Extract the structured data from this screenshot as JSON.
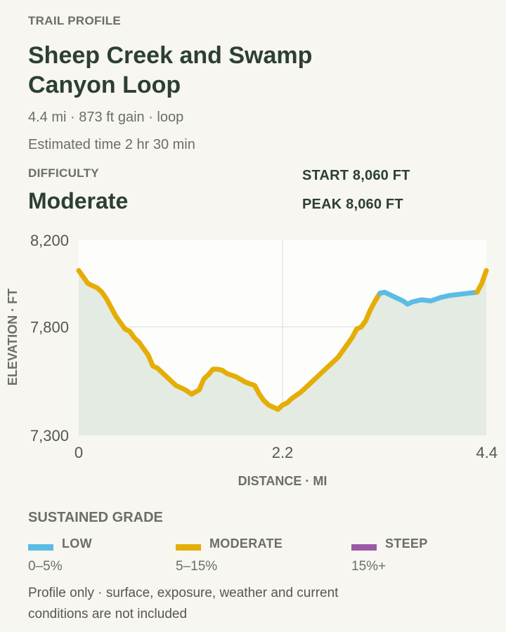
{
  "header": {
    "eyebrow": "TRAIL PROFILE",
    "title": "Sheep Creek and Swamp Canyon Loop",
    "summary": "4.4 mi · 873 ft gain · loop",
    "time": "Estimated time 2 hr 30 min"
  },
  "difficulty": {
    "label": "DIFFICULTY",
    "value": "Moderate"
  },
  "stats": {
    "start": "START 8,060 FT",
    "peak": "PEAK 8,060 FT"
  },
  "chart_data": {
    "type": "line",
    "title": "",
    "xlabel": "DISTANCE · MI",
    "ylabel": "ELEVATION · FT",
    "xlim": [
      0,
      4.4
    ],
    "ylim": [
      7300,
      8200
    ],
    "x_ticks": [
      "0",
      "2.2",
      "4.4"
    ],
    "y_ticks": [
      "8,200",
      "7,800",
      "7,300"
    ],
    "grid": true,
    "fill_under": true,
    "points": [
      [
        0.0,
        8060
      ],
      [
        0.05,
        8030
      ],
      [
        0.1,
        8000
      ],
      [
        0.15,
        7990
      ],
      [
        0.2,
        7980
      ],
      [
        0.25,
        7960
      ],
      [
        0.3,
        7930
      ],
      [
        0.35,
        7890
      ],
      [
        0.4,
        7850
      ],
      [
        0.45,
        7820
      ],
      [
        0.5,
        7790
      ],
      [
        0.55,
        7780
      ],
      [
        0.6,
        7750
      ],
      [
        0.65,
        7730
      ],
      [
        0.7,
        7700
      ],
      [
        0.75,
        7670
      ],
      [
        0.8,
        7620
      ],
      [
        0.85,
        7610
      ],
      [
        0.9,
        7590
      ],
      [
        0.95,
        7570
      ],
      [
        1.0,
        7550
      ],
      [
        1.05,
        7530
      ],
      [
        1.1,
        7520
      ],
      [
        1.15,
        7510
      ],
      [
        1.22,
        7490
      ],
      [
        1.3,
        7510
      ],
      [
        1.35,
        7560
      ],
      [
        1.4,
        7580
      ],
      [
        1.45,
        7605
      ],
      [
        1.5,
        7605
      ],
      [
        1.55,
        7600
      ],
      [
        1.6,
        7585
      ],
      [
        1.7,
        7570
      ],
      [
        1.8,
        7545
      ],
      [
        1.9,
        7530
      ],
      [
        1.95,
        7490
      ],
      [
        2.0,
        7460
      ],
      [
        2.05,
        7440
      ],
      [
        2.1,
        7430
      ],
      [
        2.15,
        7420
      ],
      [
        2.2,
        7440
      ],
      [
        2.25,
        7450
      ],
      [
        2.3,
        7470
      ],
      [
        2.4,
        7500
      ],
      [
        2.5,
        7540
      ],
      [
        2.6,
        7580
      ],
      [
        2.7,
        7620
      ],
      [
        2.8,
        7660
      ],
      [
        2.9,
        7720
      ],
      [
        2.95,
        7750
      ],
      [
        3.0,
        7790
      ],
      [
        3.05,
        7800
      ],
      [
        3.1,
        7830
      ],
      [
        3.15,
        7880
      ],
      [
        3.2,
        7920
      ],
      [
        3.25,
        7955
      ],
      [
        3.3,
        7960
      ],
      [
        3.35,
        7950
      ],
      [
        3.4,
        7940
      ],
      [
        3.5,
        7920
      ],
      [
        3.55,
        7905
      ],
      [
        3.6,
        7915
      ],
      [
        3.7,
        7925
      ],
      [
        3.8,
        7920
      ],
      [
        3.9,
        7935
      ],
      [
        4.0,
        7945
      ],
      [
        4.1,
        7950
      ],
      [
        4.2,
        7955
      ],
      [
        4.3,
        7960
      ],
      [
        4.35,
        8000
      ],
      [
        4.4,
        8060
      ]
    ],
    "segments": [
      {
        "grade": "moderate",
        "from": 0.0,
        "to": 3.25
      },
      {
        "grade": "low",
        "from": 3.25,
        "to": 4.3
      },
      {
        "grade": "moderate",
        "from": 4.3,
        "to": 4.4
      }
    ],
    "colors": {
      "low": "#5bbce6",
      "moderate": "#e5ad06",
      "steep": "#9b59a6",
      "fill": "#e3ebe3",
      "plot_bg": "#fdfdfc",
      "grid": "#dcdcd8"
    }
  },
  "legend": {
    "title": "SUSTAINED GRADE",
    "items": [
      {
        "label": "LOW",
        "range": "0–5%",
        "color": "#5bbce6"
      },
      {
        "label": "MODERATE",
        "range": "5–15%",
        "color": "#e5ad06"
      },
      {
        "label": "STEEP",
        "range": "15%+",
        "color": "#9b59a6"
      }
    ]
  },
  "note": "Profile only · surface, exposure, weather and current conditions are not included"
}
